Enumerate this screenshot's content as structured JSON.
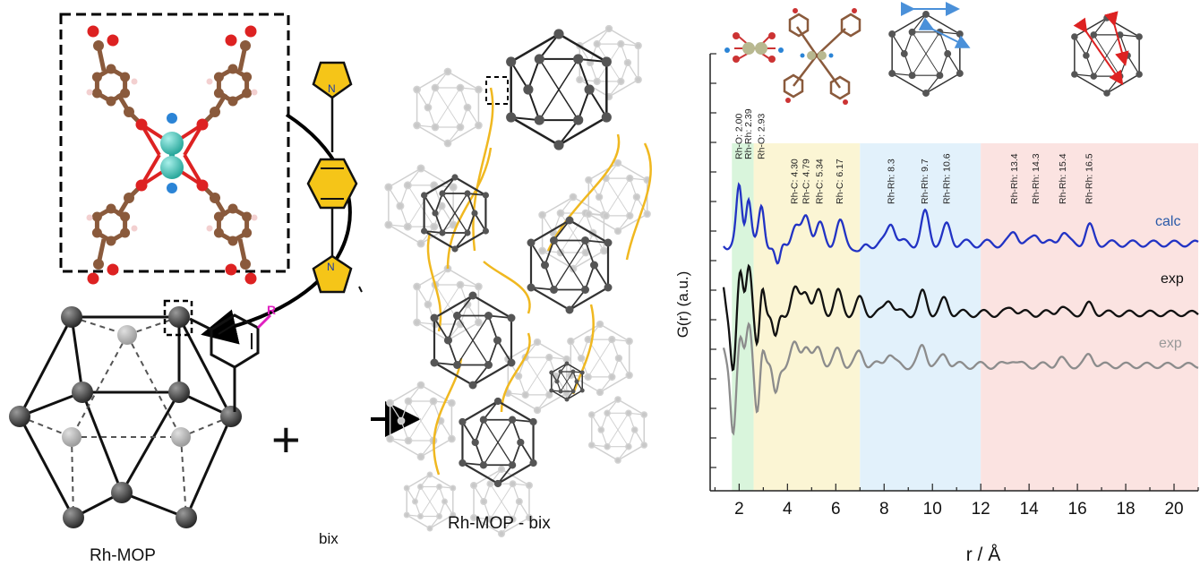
{
  "labels": {
    "rh_mop": "Rh-MOP",
    "bix": "bix",
    "rh_mop_bix": "Rh-MOP - bix",
    "r_group": "R",
    "plus": "+",
    "imidazole_n_top": "N",
    "imidazole_n_bottom": "N"
  },
  "chart_data": {
    "type": "line",
    "xlabel": "r / Å",
    "ylabel": "G(r) (a.u.)",
    "xlim": [
      0.8,
      21
    ],
    "x_ticks": [
      "2",
      "4",
      "6",
      "8",
      "10",
      "12",
      "14",
      "16",
      "18",
      "20"
    ],
    "bands": [
      {
        "from": 1.7,
        "to": 2.6,
        "color": "#d9f5dc"
      },
      {
        "from": 2.6,
        "to": 7.0,
        "color": "#fbf5d4"
      },
      {
        "from": 7.0,
        "to": 12.0,
        "color": "#e2f1fb"
      },
      {
        "from": 12.0,
        "to": 21.0,
        "color": "#fbe3e1"
      }
    ],
    "annotations": [
      {
        "r": 2.0,
        "text": "Rh-O: 2.00"
      },
      {
        "r": 2.39,
        "text": "Rh-Rh: 2.39"
      },
      {
        "r": 2.93,
        "text": "Rh-O: 2.93"
      },
      {
        "r": 4.3,
        "text": "Rh-C: 4.30"
      },
      {
        "r": 4.79,
        "text": "Rh-C: 4.79"
      },
      {
        "r": 5.34,
        "text": "Rh-C: 5.34"
      },
      {
        "r": 6.17,
        "text": "Rh-C: 6.17"
      },
      {
        "r": 8.3,
        "text": "Rh-Rh: 8.3"
      },
      {
        "r": 9.7,
        "text": "Rh-Rh: 9.7"
      },
      {
        "r": 10.6,
        "text": "Rh-Rh: 10.6"
      },
      {
        "r": 13.4,
        "text": "Rh-Rh: 13.4"
      },
      {
        "r": 14.3,
        "text": "Rh-Rh: 14.3"
      },
      {
        "r": 15.4,
        "text": "Rh-Rh: 15.4"
      },
      {
        "r": 16.5,
        "text": "Rh-Rh: 16.5"
      }
    ],
    "series": [
      {
        "name": "calc",
        "color": "#2233c4",
        "peaks": [
          [
            2.0,
            1.1
          ],
          [
            2.39,
            1.0
          ],
          [
            2.93,
            0.7
          ],
          [
            3.6,
            -0.5
          ],
          [
            4.3,
            0.35
          ],
          [
            4.79,
            0.6
          ],
          [
            5.34,
            0.35
          ],
          [
            6.17,
            0.4
          ],
          [
            7.0,
            -0.2
          ],
          [
            8.3,
            0.45
          ],
          [
            9.7,
            0.6
          ],
          [
            10.6,
            0.35
          ],
          [
            13.4,
            0.25
          ],
          [
            14.3,
            0.2
          ],
          [
            15.4,
            0.25
          ],
          [
            16.5,
            0.35
          ]
        ]
      },
      {
        "name": "exp",
        "color": "#111111",
        "peaks": [
          [
            1.3,
            0.8
          ],
          [
            1.75,
            -1.4
          ],
          [
            2.05,
            1.0
          ],
          [
            2.4,
            1.1
          ],
          [
            2.75,
            -0.9
          ],
          [
            2.95,
            0.75
          ],
          [
            3.5,
            -0.6
          ],
          [
            4.3,
            0.5
          ],
          [
            4.75,
            0.55
          ],
          [
            5.3,
            0.45
          ],
          [
            6.1,
            0.45
          ],
          [
            7.0,
            0.3
          ],
          [
            8.2,
            0.35
          ],
          [
            9.6,
            0.45
          ],
          [
            10.5,
            0.3
          ],
          [
            13.3,
            0.15
          ],
          [
            15.3,
            0.15
          ],
          [
            16.5,
            0.2
          ]
        ]
      },
      {
        "name": "exp",
        "color": "#8c8c8c",
        "peaks": [
          [
            1.3,
            0.55
          ],
          [
            1.75,
            -1.7
          ],
          [
            2.05,
            0.8
          ],
          [
            2.4,
            0.9
          ],
          [
            2.75,
            -1.2
          ],
          [
            2.95,
            0.6
          ],
          [
            3.5,
            -0.7
          ],
          [
            4.3,
            0.45
          ],
          [
            4.75,
            0.5
          ],
          [
            5.3,
            0.4
          ],
          [
            6.1,
            0.35
          ],
          [
            7.0,
            0.3
          ],
          [
            8.2,
            0.3
          ],
          [
            9.6,
            0.45
          ],
          [
            10.5,
            0.25
          ],
          [
            13.3,
            0.15
          ],
          [
            15.3,
            0.15
          ],
          [
            16.5,
            0.25
          ]
        ]
      }
    ]
  }
}
